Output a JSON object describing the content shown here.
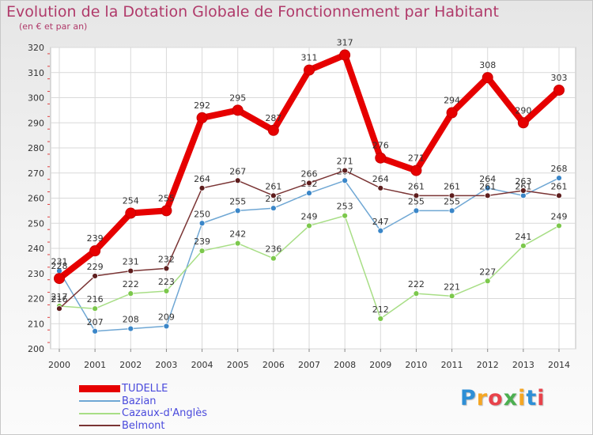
{
  "title": "Evolution de la Dotation Globale de Fonctionnement par Habitant",
  "subtitle": "(en € et par an)",
  "logo": {
    "text": "Proxiti",
    "letters": [
      "P",
      "r",
      "o",
      "x",
      "i",
      "t",
      "i"
    ],
    "colors": [
      "#2e8fd6",
      "#f5a623",
      "#e8434b",
      "#4caf50",
      "#f5a623",
      "#2e8fd6",
      "#e8434b"
    ]
  },
  "chart_data": {
    "type": "line",
    "title": "Evolution de la Dotation Globale de Fonctionnement par Habitant",
    "subtitle": "(en € et par an)",
    "x": [
      "2000",
      "2001",
      "2002",
      "2003",
      "2004",
      "2005",
      "2006",
      "2007",
      "2008",
      "2009",
      "2010",
      "2011",
      "2012",
      "2013",
      "2014"
    ],
    "ylim": [
      200,
      320
    ],
    "yticks": [
      "200",
      "210",
      "220",
      "230",
      "240",
      "250",
      "260",
      "270",
      "280",
      "290",
      "300",
      "310",
      "320"
    ],
    "grid": true,
    "legend_position": "bottom-left",
    "series": [
      {
        "name": "TUDELLE",
        "color": "#e60000",
        "marker_color": "#e60000",
        "thick": true,
        "values": [
          228,
          239,
          254,
          255,
          292,
          295,
          287,
          311,
          317,
          276,
          271,
          294,
          308,
          290,
          303
        ],
        "labels": [
          "228",
          "239",
          "254",
          "255",
          "292",
          "295",
          "287",
          "311",
          "317",
          "276",
          "271",
          "294",
          "308",
          "290",
          "303"
        ]
      },
      {
        "name": "Bazian",
        "color": "#6fa7d4",
        "marker_color": "#3a86c8",
        "thick": false,
        "values": [
          231,
          207,
          208,
          209,
          250,
          255,
          256,
          262,
          267,
          247,
          255,
          255,
          264,
          261,
          268
        ],
        "labels": [
          "231",
          "207",
          "208",
          "209",
          "250",
          "255",
          "256",
          "262",
          "267",
          "247",
          "255",
          "255",
          "264",
          "261",
          "268"
        ]
      },
      {
        "name": "Cazaux-d'Anglès",
        "color": "#a8de86",
        "marker_color": "#7cc84c",
        "thick": false,
        "values": [
          217,
          216,
          222,
          223,
          239,
          242,
          236,
          249,
          253,
          212,
          222,
          221,
          227,
          241,
          249
        ],
        "labels": [
          "217",
          "216",
          "222",
          "223",
          "239",
          "242",
          "236",
          "249",
          "253",
          "212",
          "222",
          "221",
          "227",
          "241",
          "249"
        ]
      },
      {
        "name": "Belmont",
        "color": "#7a3434",
        "marker_color": "#5e1e1e",
        "thick": false,
        "values": [
          216,
          229,
          231,
          232,
          264,
          267,
          261,
          266,
          271,
          264,
          261,
          261,
          261,
          263,
          261
        ],
        "labels": [
          "216",
          "229",
          "231",
          "232",
          "264",
          "267",
          "261",
          "266",
          "271",
          "264",
          "261",
          "261",
          "261",
          "263",
          "261"
        ]
      }
    ]
  }
}
